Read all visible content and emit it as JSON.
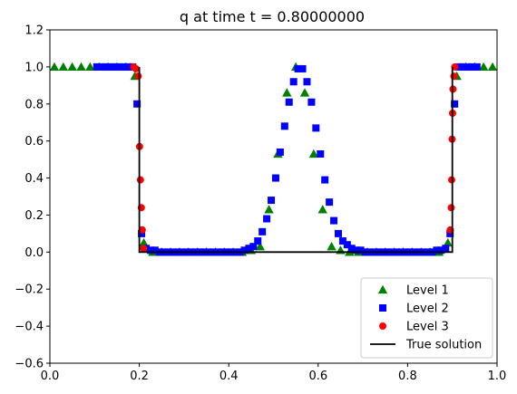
{
  "chart_data": {
    "type": "line",
    "title": "q at time t =     0.80000000",
    "xlabel": "",
    "ylabel": "",
    "xlim": [
      0.0,
      1.0
    ],
    "ylim": [
      -0.6,
      1.2
    ],
    "xticks": [
      "0.0",
      "0.2",
      "0.4",
      "0.6",
      "0.8",
      "1.0"
    ],
    "xtick_values": [
      0.0,
      0.2,
      0.4,
      0.6,
      0.8,
      1.0
    ],
    "yticks": [
      "−0.6",
      "−0.4",
      "−0.2",
      "0.0",
      "0.2",
      "0.4",
      "0.6",
      "0.8",
      "1.0",
      "1.2"
    ],
    "ytick_values": [
      -0.6,
      -0.4,
      -0.2,
      0.0,
      0.2,
      0.4,
      0.6,
      0.8,
      1.0,
      1.2
    ],
    "grid": false,
    "legend_position": "lower-right",
    "series": [
      {
        "name": "Level 1",
        "marker": "triangle",
        "color": "#008000",
        "x": [
          0.01,
          0.03,
          0.05,
          0.07,
          0.09,
          0.11,
          0.13,
          0.15,
          0.17,
          0.19,
          0.21,
          0.23,
          0.25,
          0.27,
          0.29,
          0.31,
          0.33,
          0.35,
          0.37,
          0.39,
          0.41,
          0.43,
          0.45,
          0.47,
          0.49,
          0.51,
          0.53,
          0.55,
          0.57,
          0.59,
          0.61,
          0.63,
          0.65,
          0.67,
          0.69,
          0.71,
          0.73,
          0.75,
          0.77,
          0.79,
          0.81,
          0.83,
          0.85,
          0.87,
          0.89,
          0.91,
          0.93,
          0.95,
          0.97,
          0.99
        ],
        "y": [
          1.0,
          1.0,
          1.0,
          1.0,
          1.0,
          1.0,
          1.0,
          1.0,
          1.0,
          0.95,
          0.05,
          0.0,
          0.0,
          0.0,
          0.0,
          0.0,
          0.0,
          0.0,
          0.0,
          0.0,
          0.0,
          0.0,
          0.01,
          0.03,
          0.23,
          0.53,
          0.86,
          1.0,
          0.86,
          0.53,
          0.23,
          0.03,
          0.01,
          0.0,
          0.0,
          0.0,
          0.0,
          0.0,
          0.0,
          0.0,
          0.0,
          0.0,
          0.0,
          0.0,
          0.05,
          0.95,
          1.0,
          1.0,
          1.0,
          1.0
        ]
      },
      {
        "name": "Level 2",
        "marker": "square",
        "color": "#0000ff",
        "x": [
          0.105,
          0.115,
          0.125,
          0.135,
          0.145,
          0.155,
          0.165,
          0.175,
          0.185,
          0.195,
          0.205,
          0.215,
          0.225,
          0.235,
          0.245,
          0.255,
          0.265,
          0.275,
          0.285,
          0.295,
          0.305,
          0.315,
          0.325,
          0.335,
          0.345,
          0.355,
          0.365,
          0.375,
          0.385,
          0.395,
          0.405,
          0.415,
          0.425,
          0.435,
          0.445,
          0.455,
          0.465,
          0.475,
          0.485,
          0.495,
          0.505,
          0.515,
          0.525,
          0.535,
          0.545,
          0.555,
          0.565,
          0.575,
          0.585,
          0.595,
          0.605,
          0.615,
          0.625,
          0.635,
          0.645,
          0.655,
          0.665,
          0.675,
          0.685,
          0.695,
          0.705,
          0.715,
          0.725,
          0.735,
          0.745,
          0.755,
          0.765,
          0.775,
          0.785,
          0.795,
          0.805,
          0.815,
          0.825,
          0.835,
          0.845,
          0.855,
          0.865,
          0.875,
          0.885,
          0.895,
          0.905,
          0.915,
          0.925,
          0.935,
          0.945,
          0.955
        ],
        "y": [
          1.0,
          1.0,
          1.0,
          1.0,
          1.0,
          1.0,
          1.0,
          1.0,
          1.0,
          0.8,
          0.1,
          0.02,
          0.01,
          0.01,
          0.0,
          0.0,
          0.0,
          0.0,
          0.0,
          0.0,
          0.0,
          0.0,
          0.0,
          0.0,
          0.0,
          0.0,
          0.0,
          0.0,
          0.0,
          0.0,
          0.0,
          0.0,
          0.0,
          0.01,
          0.02,
          0.03,
          0.06,
          0.11,
          0.18,
          0.28,
          0.4,
          0.54,
          0.68,
          0.81,
          0.92,
          0.99,
          0.99,
          0.92,
          0.81,
          0.67,
          0.53,
          0.39,
          0.27,
          0.17,
          0.1,
          0.06,
          0.04,
          0.02,
          0.01,
          0.01,
          0.0,
          0.0,
          0.0,
          0.0,
          0.0,
          0.0,
          0.0,
          0.0,
          0.0,
          0.0,
          0.0,
          0.0,
          0.0,
          0.0,
          0.0,
          0.0,
          0.01,
          0.01,
          0.02,
          0.1,
          0.8,
          1.0,
          1.0,
          1.0,
          1.0,
          1.0
        ]
      },
      {
        "name": "Level 3",
        "marker": "circle",
        "color": "#ff0000",
        "x": [
          0.1875,
          0.1925,
          0.1975,
          0.2005,
          0.2025,
          0.2045,
          0.2065,
          0.2095,
          0.8955,
          0.8975,
          0.8985,
          0.8995,
          0.9005,
          0.9015,
          0.9035,
          0.9055
        ],
        "y": [
          1.0,
          0.99,
          0.95,
          0.57,
          0.39,
          0.24,
          0.12,
          0.02,
          0.12,
          0.24,
          0.39,
          0.61,
          0.75,
          0.88,
          0.95,
          1.0
        ]
      },
      {
        "name": "True solution",
        "marker": "line",
        "color": "#000000",
        "x": [
          0.2,
          0.2,
          0.9,
          0.9
        ],
        "y": [
          1.0,
          0.0,
          0.0,
          1.0
        ]
      }
    ]
  }
}
